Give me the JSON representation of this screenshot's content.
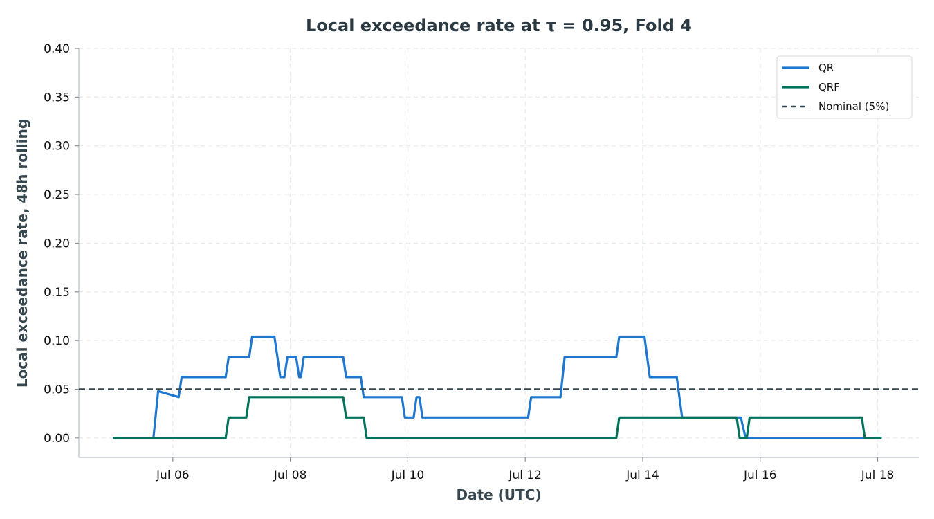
{
  "chart_data": {
    "type": "line",
    "title": "Local exceedance rate at τ = 0.95, Fold 4",
    "xlabel": "Date (UTC)",
    "ylabel": "Local exceedance rate, 48h rolling",
    "x_unit": "days of July (UTC)",
    "xlim": [
      4.4,
      18.7
    ],
    "ylim": [
      -0.02,
      0.4
    ],
    "x_ticks": [
      6,
      8,
      10,
      12,
      14,
      16,
      18
    ],
    "x_tick_labels": [
      "Jul 06",
      "Jul 08",
      "Jul 10",
      "Jul 12",
      "Jul 14",
      "Jul 16",
      "Jul 18"
    ],
    "y_ticks": [
      0,
      0.05,
      0.1,
      0.15,
      0.2,
      0.25,
      0.3,
      0.35,
      0.4
    ],
    "y_tick_labels": [
      "0.00",
      "0.05",
      "0.10",
      "0.15",
      "0.20",
      "0.25",
      "0.30",
      "0.35",
      "0.40"
    ],
    "grid": true,
    "legend_position": "top-right",
    "series": [
      {
        "name": "QR",
        "color": "#1f77d0",
        "x": [
          5.0,
          5.67,
          5.75,
          6.1,
          6.15,
          6.9,
          6.95,
          7.3,
          7.35,
          7.73,
          7.83,
          7.9,
          7.95,
          8.1,
          8.15,
          8.18,
          8.23,
          8.9,
          8.95,
          9.2,
          9.25,
          9.9,
          9.95,
          10.1,
          10.15,
          10.2,
          10.25,
          12.05,
          12.1,
          12.6,
          12.67,
          13.55,
          13.6,
          14.03,
          14.12,
          14.58,
          14.67,
          15.67,
          15.75,
          18.05
        ],
        "y": [
          0.0,
          0.0,
          0.048,
          0.042,
          0.0625,
          0.0625,
          0.083,
          0.083,
          0.104,
          0.104,
          0.0625,
          0.0625,
          0.083,
          0.083,
          0.0625,
          0.0625,
          0.083,
          0.083,
          0.0625,
          0.0625,
          0.042,
          0.042,
          0.021,
          0.021,
          0.042,
          0.042,
          0.021,
          0.021,
          0.042,
          0.042,
          0.083,
          0.083,
          0.104,
          0.104,
          0.0625,
          0.0625,
          0.021,
          0.021,
          0.0,
          0.0
        ]
      },
      {
        "name": "QRF",
        "color": "#00735a",
        "x": [
          5.0,
          6.9,
          6.95,
          7.25,
          7.3,
          8.9,
          8.95,
          9.25,
          9.3,
          13.55,
          13.6,
          15.6,
          15.65,
          15.77,
          15.82,
          17.73,
          17.78,
          18.05
        ],
        "y": [
          0.0,
          0.0,
          0.021,
          0.021,
          0.042,
          0.042,
          0.021,
          0.021,
          0.0,
          0.0,
          0.021,
          0.021,
          0.0,
          0.0,
          0.021,
          0.021,
          0.0,
          0.0
        ]
      },
      {
        "name": "Nominal (5%)",
        "color": "#37474f",
        "style": "dashed",
        "y_constant": 0.05
      }
    ]
  }
}
